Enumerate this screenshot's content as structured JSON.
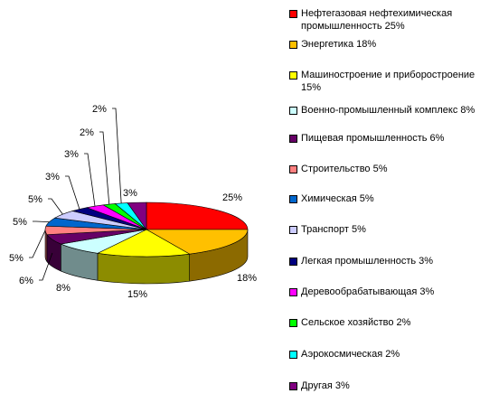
{
  "chart_data": {
    "type": "pie",
    "categories": [
      "Нефтегазовая нефтехимическая промышленность  25%",
      "Энергетика 18%",
      "Машиностроение и приборостроение 15%",
      "Военно-промышленный комплекс 8%",
      "Пищевая промышленность  6%",
      "Строительство 5%",
      "Химическая 5%",
      "Транспорт 5%",
      "Легкая промышленность  3%",
      "Деревообрабатывающая 3%",
      "Сельское хозяйство  2%",
      "Аэрокосмическая  2%",
      "Другая 3%"
    ],
    "values": [
      25,
      18,
      15,
      8,
      6,
      5,
      5,
      5,
      3,
      3,
      2,
      2,
      3
    ],
    "data_labels": [
      "25%",
      "18%",
      "15%",
      "8%",
      "6%",
      "5%",
      "5%",
      "5%",
      "3%",
      "3%",
      "2%",
      "2%",
      "3%"
    ],
    "colors": [
      "#ff0000",
      "#ffc000",
      "#ffff00",
      "#ccffff",
      "#660066",
      "#ff8080",
      "#0066cc",
      "#ccccff",
      "#000080",
      "#ff00ff",
      "#00ff00",
      "#00ffff",
      "#800080"
    ],
    "style": "3d-pie",
    "legend_position": "right"
  }
}
